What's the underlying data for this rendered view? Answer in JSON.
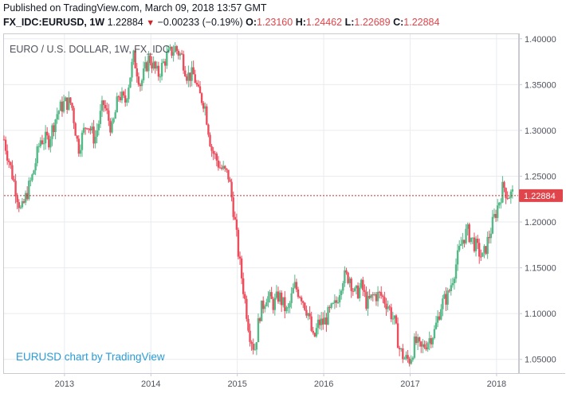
{
  "header": {
    "published": "Published on TradingView.com, March 09, 2018 13:57 GMT",
    "symbol": "FX_IDC:EURUSD, 1W",
    "last": "1.22884",
    "arrow": "▼",
    "change": "−0.00233 (−0.19%)",
    "o_label": "O:",
    "o_value": "1.23160",
    "h_label": "H:",
    "h_value": "1.24462",
    "l_label": "L:",
    "l_value": "1.22689",
    "c_label": "C:",
    "c_value": "1.22884"
  },
  "chart_data": {
    "type": "candlestick",
    "title": "EURO / U.S. DOLLAR, 1W, FX_IDC",
    "watermark": "EURUSD chart by TradingView",
    "ylim": [
      1.035,
      1.405
    ],
    "y_ticks": [
      "1.40000",
      "1.35000",
      "1.30000",
      "1.25000",
      "1.20000",
      "1.15000",
      "1.10000",
      "1.05000"
    ],
    "x_ticks": [
      "2013",
      "2014",
      "2015",
      "2016",
      "2017",
      "2018"
    ],
    "x_range_years": [
      2012.3,
      2018.25
    ],
    "last_price": 1.22884,
    "last_price_label": "1.22884",
    "up_color": "#53b987",
    "down_color": "#eb4d5c",
    "price_line_color": "#d32f2f",
    "path": [
      [
        2012.3,
        1.29
      ],
      [
        2012.4,
        1.25
      ],
      [
        2012.5,
        1.21
      ],
      [
        2012.56,
        1.23
      ],
      [
        2012.63,
        1.25
      ],
      [
        2012.72,
        1.29
      ],
      [
        2012.82,
        1.29
      ],
      [
        2012.92,
        1.32
      ],
      [
        2013.0,
        1.33
      ],
      [
        2013.08,
        1.33
      ],
      [
        2013.16,
        1.28
      ],
      [
        2013.26,
        1.31
      ],
      [
        2013.35,
        1.29
      ],
      [
        2013.45,
        1.33
      ],
      [
        2013.55,
        1.3
      ],
      [
        2013.63,
        1.34
      ],
      [
        2013.7,
        1.33
      ],
      [
        2013.8,
        1.38
      ],
      [
        2013.88,
        1.35
      ],
      [
        2013.98,
        1.38
      ],
      [
        2014.08,
        1.36
      ],
      [
        2014.18,
        1.38
      ],
      [
        2014.28,
        1.39
      ],
      [
        2014.36,
        1.38
      ],
      [
        2014.42,
        1.36
      ],
      [
        2014.5,
        1.36
      ],
      [
        2014.55,
        1.34
      ],
      [
        2014.62,
        1.33
      ],
      [
        2014.7,
        1.28
      ],
      [
        2014.8,
        1.26
      ],
      [
        2014.9,
        1.25
      ],
      [
        2014.96,
        1.21
      ],
      [
        2015.02,
        1.16
      ],
      [
        2015.08,
        1.12
      ],
      [
        2015.14,
        1.08
      ],
      [
        2015.2,
        1.06
      ],
      [
        2015.26,
        1.1
      ],
      [
        2015.34,
        1.12
      ],
      [
        2015.42,
        1.11
      ],
      [
        2015.48,
        1.12
      ],
      [
        2015.58,
        1.1
      ],
      [
        2015.66,
        1.13
      ],
      [
        2015.74,
        1.12
      ],
      [
        2015.82,
        1.1
      ],
      [
        2015.88,
        1.07
      ],
      [
        2015.94,
        1.09
      ],
      [
        2016.0,
        1.09
      ],
      [
        2016.06,
        1.1
      ],
      [
        2016.14,
        1.11
      ],
      [
        2016.22,
        1.14
      ],
      [
        2016.3,
        1.14
      ],
      [
        2016.36,
        1.12
      ],
      [
        2016.44,
        1.13
      ],
      [
        2016.5,
        1.11
      ],
      [
        2016.58,
        1.12
      ],
      [
        2016.66,
        1.12
      ],
      [
        2016.74,
        1.11
      ],
      [
        2016.82,
        1.09
      ],
      [
        2016.88,
        1.06
      ],
      [
        2016.94,
        1.05
      ],
      [
        2017.0,
        1.05
      ],
      [
        2017.06,
        1.07
      ],
      [
        2017.12,
        1.06
      ],
      [
        2017.2,
        1.07
      ],
      [
        2017.28,
        1.08
      ],
      [
        2017.36,
        1.11
      ],
      [
        2017.44,
        1.12
      ],
      [
        2017.52,
        1.15
      ],
      [
        2017.6,
        1.18
      ],
      [
        2017.66,
        1.19
      ],
      [
        2017.72,
        1.18
      ],
      [
        2017.78,
        1.17
      ],
      [
        2017.84,
        1.16
      ],
      [
        2017.9,
        1.18
      ],
      [
        2017.96,
        1.2
      ],
      [
        2018.02,
        1.22
      ],
      [
        2018.08,
        1.24
      ],
      [
        2018.12,
        1.23
      ],
      [
        2018.18,
        1.23
      ]
    ]
  }
}
